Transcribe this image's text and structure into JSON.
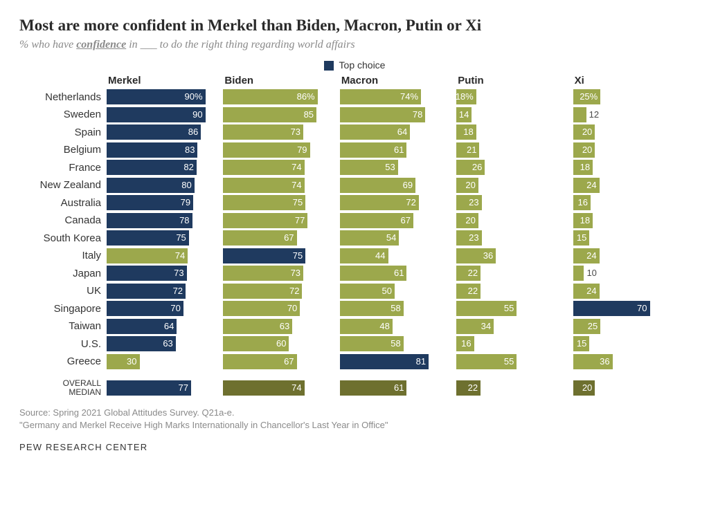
{
  "title": "Most are more confident in Merkel than Biden, Macron, Putin or Xi",
  "subtitle_prefix": "% who have ",
  "subtitle_emph": "confidence",
  "subtitle_suffix": " in ___ to do the right thing regarding world affairs",
  "legend_label": "Top choice",
  "colors": {
    "top": "#1f3a5f",
    "normal": "#9ca84c",
    "median_normal": "#6e702f",
    "text_inside": "#ffffff",
    "text_outside": "#5a5a5a"
  },
  "leaders": [
    "Merkel",
    "Biden",
    "Macron",
    "Putin",
    "Xi"
  ],
  "max_value": 100,
  "label_outside_threshold": 14,
  "show_percent_row": "Netherlands",
  "countries": [
    {
      "name": "Netherlands",
      "values": [
        90,
        86,
        74,
        18,
        25
      ],
      "top_index": 0
    },
    {
      "name": "Sweden",
      "values": [
        90,
        85,
        78,
        14,
        12
      ],
      "top_index": 0
    },
    {
      "name": "Spain",
      "values": [
        86,
        73,
        64,
        18,
        20
      ],
      "top_index": 0
    },
    {
      "name": "Belgium",
      "values": [
        83,
        79,
        61,
        21,
        20
      ],
      "top_index": 0
    },
    {
      "name": "France",
      "values": [
        82,
        74,
        53,
        26,
        18
      ],
      "top_index": 0
    },
    {
      "name": "New Zealand",
      "values": [
        80,
        74,
        69,
        20,
        24
      ],
      "top_index": 0
    },
    {
      "name": "Australia",
      "values": [
        79,
        75,
        72,
        23,
        16
      ],
      "top_index": 0
    },
    {
      "name": "Canada",
      "values": [
        78,
        77,
        67,
        20,
        18
      ],
      "top_index": 0
    },
    {
      "name": "South Korea",
      "values": [
        75,
        67,
        54,
        23,
        15
      ],
      "top_index": 0
    },
    {
      "name": "Italy",
      "values": [
        74,
        75,
        44,
        36,
        24
      ],
      "top_index": 1
    },
    {
      "name": "Japan",
      "values": [
        73,
        73,
        61,
        22,
        10
      ],
      "top_index": 0
    },
    {
      "name": "UK",
      "values": [
        72,
        72,
        50,
        22,
        24
      ],
      "top_index": 0
    },
    {
      "name": "Singapore",
      "values": [
        70,
        70,
        58,
        55,
        70
      ],
      "top_index": 0,
      "extra_top": [
        4
      ]
    },
    {
      "name": "Taiwan",
      "values": [
        64,
        63,
        48,
        34,
        25
      ],
      "top_index": 0
    },
    {
      "name": "U.S.",
      "values": [
        63,
        60,
        58,
        16,
        15
      ],
      "top_index": 0
    },
    {
      "name": "Greece",
      "values": [
        30,
        67,
        81,
        55,
        36
      ],
      "top_index": 2
    }
  ],
  "median": {
    "label": "OVERALL MEDIAN",
    "values": [
      77,
      74,
      61,
      22,
      20
    ],
    "top_index": 0
  },
  "source1": "Source: Spring 2021 Global Attitudes Survey. Q21a-e.",
  "source2": "\"Germany and Merkel Receive High Marks Internationally in Chancellor's Last Year in Office\"",
  "footer": "PEW RESEARCH CENTER"
}
